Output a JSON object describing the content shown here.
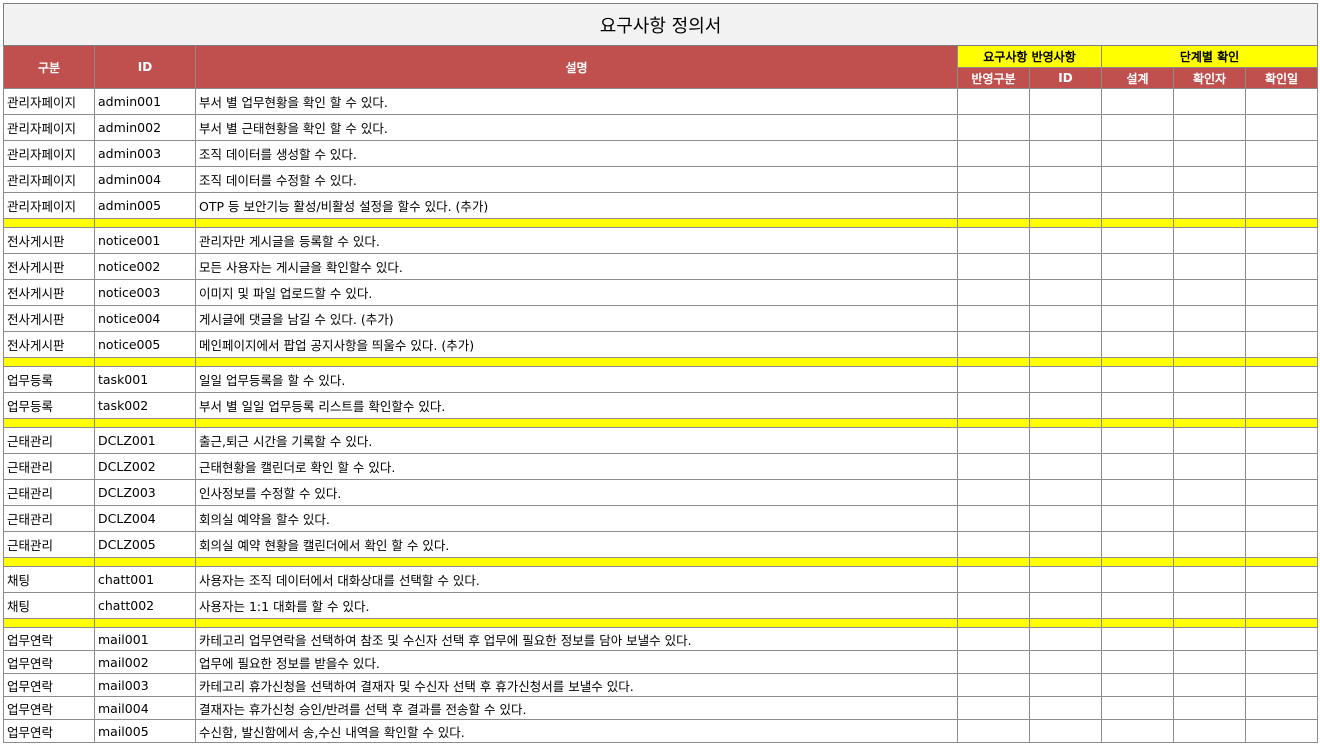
{
  "title": "요구사항 정의서",
  "headers": {
    "category": "구분",
    "id": "ID",
    "description": "설명",
    "reflect_group": "요구사항 반영사항",
    "stage_group": "단계별 확인",
    "reflect_type": "반영구분",
    "reflect_id": "ID",
    "design": "설계",
    "confirmer": "확인자",
    "confirm_date": "확인일"
  },
  "groups": [
    {
      "rows": [
        {
          "category": "관리자페이지",
          "id": "admin001",
          "desc": "부서 별 업무현황을 확인 할 수 있다."
        },
        {
          "category": "관리자페이지",
          "id": "admin002",
          "desc": "부서 별 근태현황을 확인 할 수 있다."
        },
        {
          "category": "관리자페이지",
          "id": "admin003",
          "desc": "조직 데이터를 생성할 수 있다."
        },
        {
          "category": "관리자페이지",
          "id": "admin004",
          "desc": "조직 데이터를 수정할 수 있다."
        },
        {
          "category": "관리자페이지",
          "id": "admin005",
          "desc": "OTP 등 보안기능 활성/비활성 설정을 할수 있다.  (추가)"
        }
      ]
    },
    {
      "rows": [
        {
          "category": "전사게시판",
          "id": "notice001",
          "desc": "관리자만 게시글을 등록할 수 있다."
        },
        {
          "category": "전사게시판",
          "id": "notice002",
          "desc": "모든 사용자는 게시글을 확인할수 있다."
        },
        {
          "category": "전사게시판",
          "id": "notice003",
          "desc": "이미지 및 파일 업로드할 수 있다."
        },
        {
          "category": "전사게시판",
          "id": "notice004",
          "desc": "게시글에 댓글을 남길 수 있다. (추가)"
        },
        {
          "category": "전사게시판",
          "id": "notice005",
          "desc": "메인페이지에서  팝업 공지사항을 띄울수 있다. (추가)"
        }
      ]
    },
    {
      "rows": [
        {
          "category": "업무등록",
          "id": "task001",
          "desc": "일일 업무등록을 할 수 있다."
        },
        {
          "category": "업무등록",
          "id": "task002",
          "desc": "부서 별 일일 업무등록 리스트를 확인할수 있다."
        }
      ]
    },
    {
      "rows": [
        {
          "category": "근태관리",
          "id": "DCLZ001",
          "desc": "출근,퇴근 시간을 기록할 수 있다."
        },
        {
          "category": "근태관리",
          "id": "DCLZ002",
          "desc": "근태현황을 캘린더로 확인 할 수 있다."
        },
        {
          "category": "근태관리",
          "id": "DCLZ003",
          "desc": "인사정보를 수정할 수 있다."
        },
        {
          "category": "근태관리",
          "id": "DCLZ004",
          "desc": "회의실 예약을 할수 있다."
        },
        {
          "category": "근태관리",
          "id": "DCLZ005",
          "desc": "회의실 예약 현황을 캘린더에서 확인 할 수 있다."
        }
      ]
    },
    {
      "rows": [
        {
          "category": "채팅",
          "id": "chatt001",
          "desc": "사용자는 조직 데이터에서 대화상대를 선택할 수 있다."
        },
        {
          "category": "채팅",
          "id": "chatt002",
          "desc": "사용자는 1:1 대화를 할 수 있다."
        }
      ]
    },
    {
      "short": true,
      "rows": [
        {
          "category": "업무연락",
          "id": "mail001",
          "desc": "카테고리 업무연락을 선택하여 참조 및 수신자 선택 후 업무에 필요한 정보를 담아 보낼수 있다."
        },
        {
          "category": "업무연락",
          "id": "mail002",
          "desc": "업무에 필요한 정보를 받을수 있다."
        },
        {
          "category": "업무연락",
          "id": "mail003",
          "desc": "카테고리 휴가신청을 선택하여 결재자 및 수신자 선택 후 휴가신청서를 보낼수 있다."
        },
        {
          "category": "업무연락",
          "id": "mail004",
          "desc": "결재자는 휴가신청 승인/반려를 선택 후 결과를 전송할 수 있다."
        },
        {
          "category": "업무연락",
          "id": "mail005",
          "desc": "수신함, 발신함에서 송,수신 내역을 확인할 수 있다."
        }
      ]
    }
  ]
}
